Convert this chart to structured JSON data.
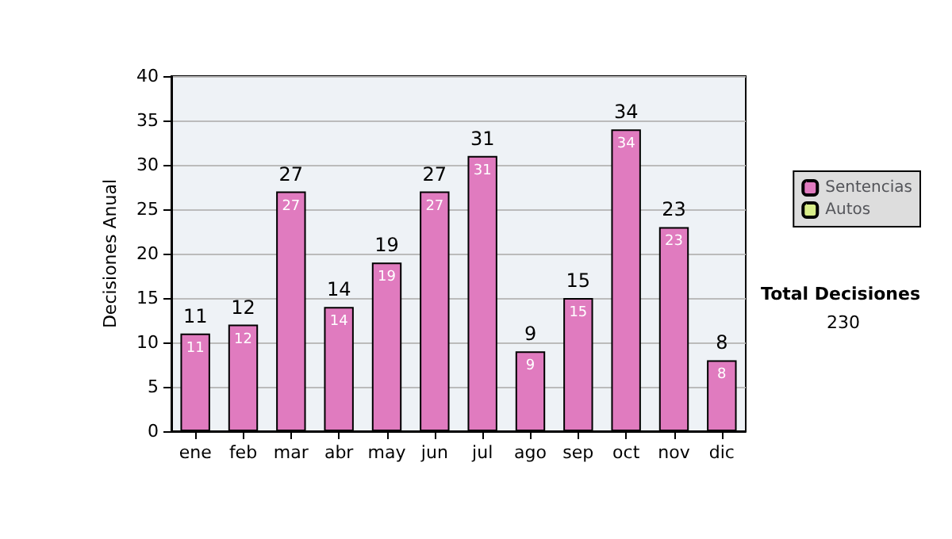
{
  "chart_data": {
    "type": "bar",
    "ylabel": "Decisiones Anual",
    "categories": [
      "ene",
      "feb",
      "mar",
      "abr",
      "may",
      "jun",
      "jul",
      "ago",
      "sep",
      "oct",
      "nov",
      "dic"
    ],
    "series": [
      {
        "name": "Sentencias",
        "color": "#e07bbf",
        "values": [
          11,
          12,
          27,
          14,
          19,
          27,
          31,
          9,
          15,
          34,
          23,
          8
        ],
        "value_labels": [
          "11",
          "12",
          "27",
          "14",
          "19",
          "27",
          "31",
          "9",
          "15",
          "34",
          "23",
          "8"
        ]
      },
      {
        "name": "Autos",
        "color": "#d9ee8a",
        "values": [
          0,
          0,
          0,
          0,
          0,
          0,
          0,
          0,
          0,
          0,
          0,
          0
        ]
      }
    ],
    "stacked": true,
    "totals": [
      "11",
      "12",
      "27",
      "14",
      "19",
      "27",
      "31",
      "9",
      "15",
      "34",
      "23",
      "8"
    ],
    "ylim": [
      0,
      40
    ],
    "yticks": [
      0,
      5,
      10,
      15,
      20,
      25,
      30,
      35,
      40
    ],
    "grid": "y",
    "legend": "right",
    "annotations": [
      "Total Decisiones",
      "230"
    ]
  }
}
